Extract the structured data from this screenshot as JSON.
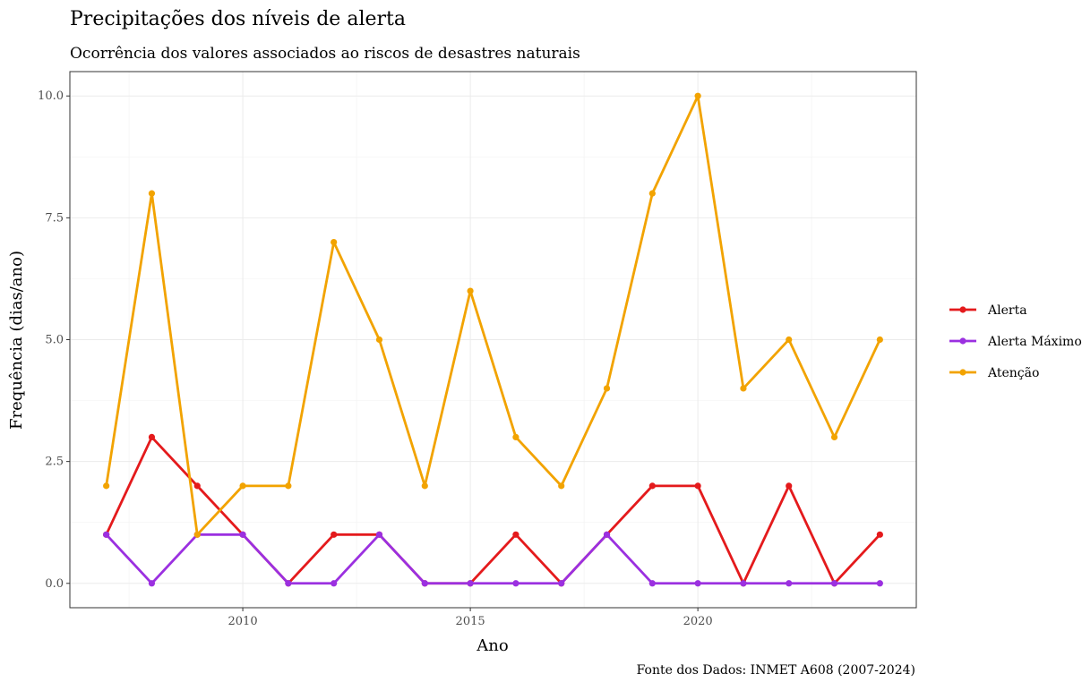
{
  "chart_data": {
    "type": "line",
    "title": "Precipitações dos níveis de alerta",
    "subtitle": "Ocorrência dos valores associados ao riscos de desastres naturais",
    "xlabel": "Ano",
    "ylabel": "Frequência (dias/ano)",
    "caption": "Fonte dos Dados: INMET A608 (2007-2024)",
    "xlim": [
      2006.2,
      2024.8
    ],
    "ylim": [
      -0.5,
      10.5
    ],
    "x_ticks": [
      2010,
      2015,
      2020
    ],
    "y_ticks": [
      0.0,
      2.5,
      5.0,
      7.5,
      10.0
    ],
    "y_tick_labels": [
      "0.0",
      "2.5",
      "5.0",
      "7.5",
      "10.0"
    ],
    "grid": true,
    "legend_position": "right",
    "x": [
      2007,
      2008,
      2009,
      2010,
      2011,
      2012,
      2013,
      2014,
      2015,
      2016,
      2017,
      2018,
      2019,
      2020,
      2021,
      2022,
      2023,
      2024
    ],
    "series": [
      {
        "name": "Alerta",
        "color": "#e41a1c",
        "values": [
          1,
          3,
          2,
          1,
          0,
          1,
          1,
          0,
          0,
          1,
          0,
          1,
          2,
          2,
          0,
          2,
          0,
          1
        ]
      },
      {
        "name": "Alerta Máximo",
        "color": "#9b30e0",
        "values": [
          1,
          0,
          1,
          1,
          0,
          0,
          1,
          0,
          0,
          0,
          0,
          1,
          0,
          0,
          0,
          0,
          0,
          0
        ]
      },
      {
        "name": "Atenção",
        "color": "#f2a300",
        "values": [
          2,
          8,
          1,
          2,
          2,
          7,
          5,
          2,
          6,
          3,
          2,
          4,
          8,
          10,
          4,
          5,
          3,
          5
        ]
      }
    ]
  }
}
